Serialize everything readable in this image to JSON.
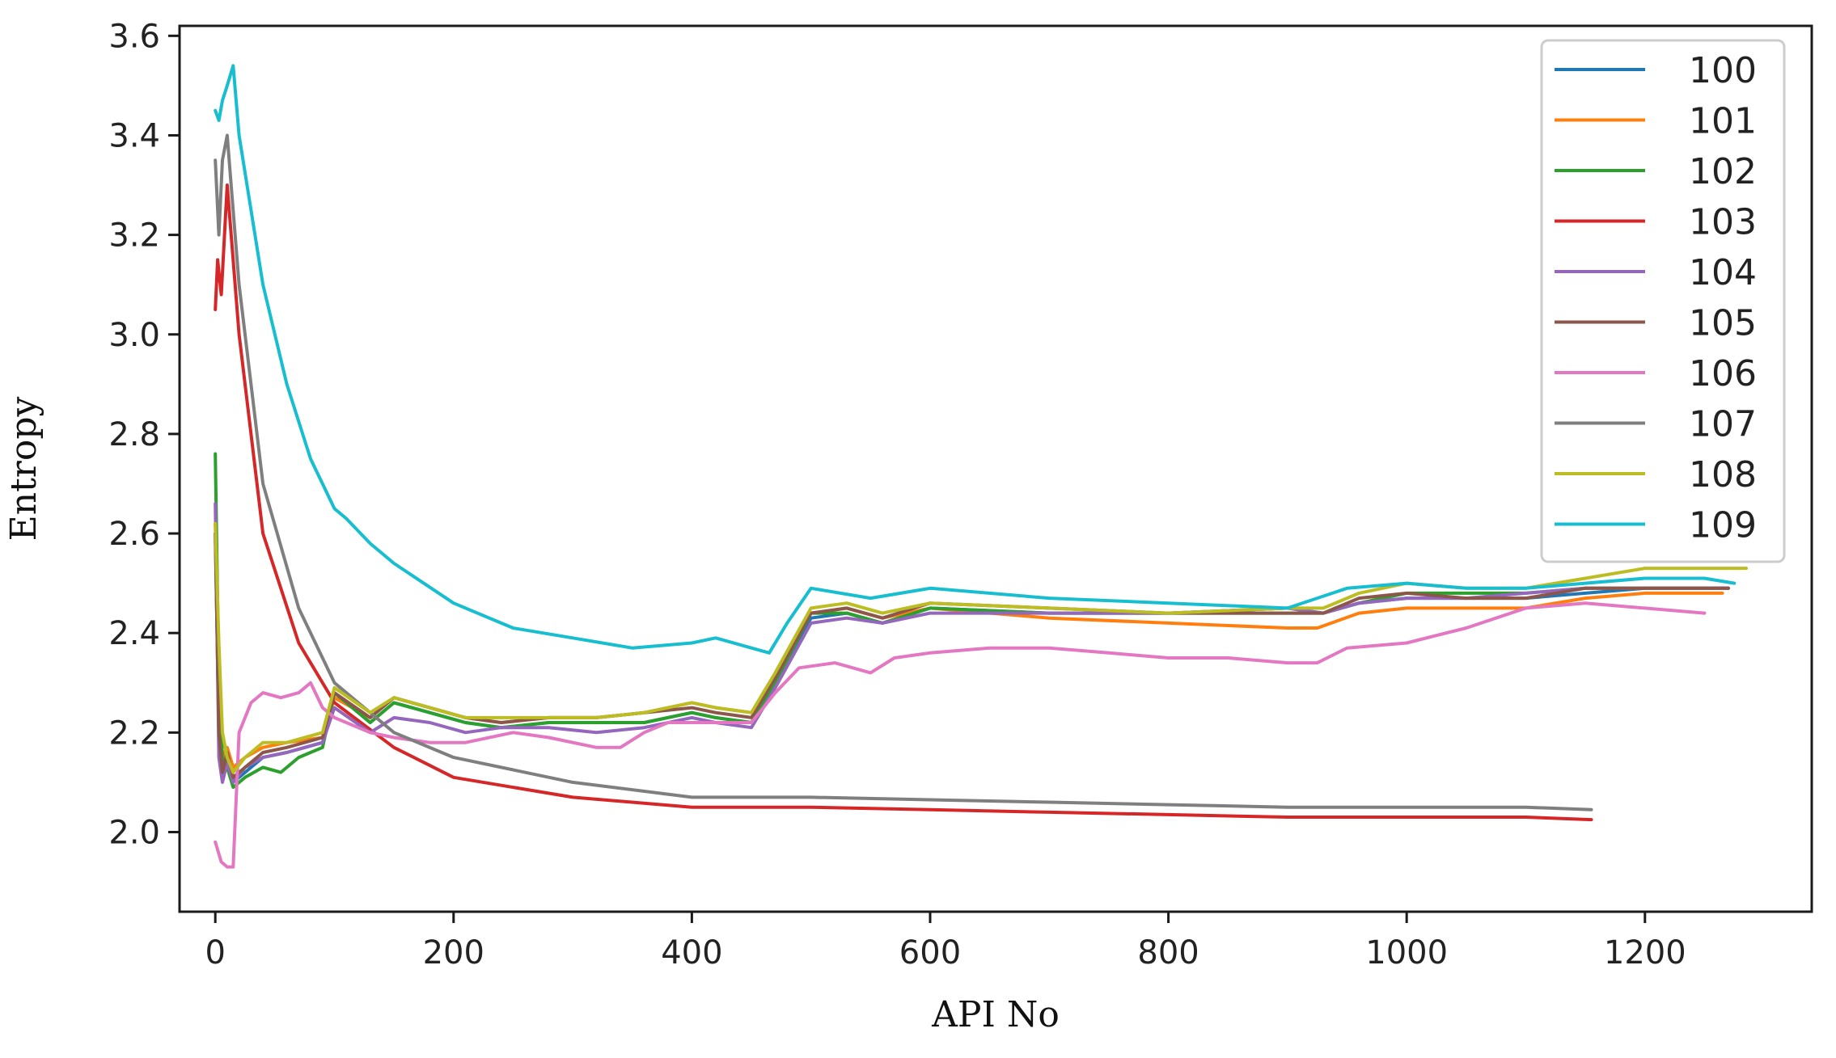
{
  "chart_data": {
    "type": "line",
    "title": "",
    "xlabel": "API No",
    "ylabel": "Entropy",
    "xlim": [
      -30,
      1340
    ],
    "ylim": [
      1.84,
      3.62
    ],
    "xticks": [
      0,
      200,
      400,
      600,
      800,
      1000,
      1200
    ],
    "yticks": [
      2.0,
      2.2,
      2.4,
      2.6,
      2.8,
      3.0,
      3.2,
      3.4,
      3.6
    ],
    "xtick_labels": [
      "0",
      "200",
      "400",
      "600",
      "800",
      "1000",
      "1200"
    ],
    "ytick_labels": [
      "2.0",
      "2.2",
      "2.4",
      "2.6",
      "2.8",
      "3.0",
      "3.2",
      "3.4",
      "3.6"
    ],
    "grid": false,
    "legend_position": "top-right",
    "series": [
      {
        "name": "100",
        "color": "#1f77b4",
        "x": [
          0,
          3,
          6,
          10,
          15,
          25,
          40,
          60,
          90,
          100,
          130,
          150,
          180,
          210,
          240,
          280,
          320,
          360,
          400,
          420,
          450,
          470,
          500,
          530,
          560,
          600,
          700,
          800,
          900,
          930,
          960,
          1000,
          1050,
          1100,
          1150,
          1200,
          1270
        ],
        "y": [
          2.6,
          2.2,
          2.12,
          2.15,
          2.1,
          2.12,
          2.15,
          2.16,
          2.18,
          2.28,
          2.22,
          2.26,
          2.24,
          2.22,
          2.21,
          2.22,
          2.22,
          2.22,
          2.24,
          2.23,
          2.22,
          2.3,
          2.43,
          2.44,
          2.42,
          2.45,
          2.44,
          2.44,
          2.45,
          2.44,
          2.46,
          2.47,
          2.47,
          2.47,
          2.48,
          2.49,
          2.49
        ]
      },
      {
        "name": "101",
        "color": "#ff7f0e",
        "x": [
          0,
          3,
          6,
          10,
          15,
          25,
          40,
          60,
          90,
          100,
          130,
          150,
          180,
          210,
          240,
          280,
          320,
          360,
          400,
          420,
          450,
          470,
          500,
          530,
          560,
          600,
          700,
          800,
          900,
          925,
          960,
          1000,
          1050,
          1100,
          1150,
          1200,
          1265
        ],
        "y": [
          2.62,
          2.25,
          2.15,
          2.17,
          2.13,
          2.15,
          2.17,
          2.18,
          2.19,
          2.27,
          2.23,
          2.27,
          2.25,
          2.23,
          2.22,
          2.23,
          2.23,
          2.24,
          2.26,
          2.25,
          2.24,
          2.31,
          2.44,
          2.45,
          2.43,
          2.45,
          2.43,
          2.42,
          2.41,
          2.41,
          2.44,
          2.45,
          2.45,
          2.45,
          2.47,
          2.48,
          2.48
        ]
      },
      {
        "name": "102",
        "color": "#2ca02c",
        "x": [
          0,
          3,
          6,
          10,
          15,
          25,
          40,
          55,
          70,
          90,
          100,
          130,
          150,
          180,
          210,
          240,
          280,
          320,
          360,
          400,
          420,
          450,
          470,
          500,
          530,
          560,
          600,
          700,
          800,
          900,
          930,
          960,
          1000,
          1050,
          1100,
          1150,
          1200,
          1270
        ],
        "y": [
          2.76,
          2.3,
          2.15,
          2.13,
          2.09,
          2.11,
          2.13,
          2.12,
          2.15,
          2.17,
          2.28,
          2.22,
          2.26,
          2.24,
          2.22,
          2.21,
          2.22,
          2.22,
          2.22,
          2.24,
          2.23,
          2.22,
          2.3,
          2.44,
          2.44,
          2.42,
          2.45,
          2.44,
          2.44,
          2.44,
          2.44,
          2.46,
          2.48,
          2.48,
          2.48,
          2.49,
          2.49,
          2.49
        ]
      },
      {
        "name": "103",
        "color": "#d62728",
        "x": [
          0,
          2,
          5,
          10,
          20,
          40,
          70,
          100,
          150,
          200,
          300,
          400,
          500,
          600,
          700,
          800,
          900,
          1000,
          1100,
          1155
        ],
        "y": [
          3.05,
          3.15,
          3.08,
          3.3,
          3.0,
          2.6,
          2.38,
          2.26,
          2.17,
          2.11,
          2.07,
          2.05,
          2.05,
          2.045,
          2.04,
          2.035,
          2.03,
          2.03,
          2.03,
          2.025
        ]
      },
      {
        "name": "104",
        "color": "#9467bd",
        "x": [
          0,
          3,
          6,
          10,
          15,
          25,
          40,
          60,
          90,
          100,
          130,
          150,
          180,
          210,
          240,
          280,
          320,
          360,
          400,
          420,
          450,
          470,
          500,
          530,
          560,
          600,
          700,
          800,
          900,
          930,
          960,
          1000,
          1050,
          1100,
          1150,
          1200,
          1270
        ],
        "y": [
          2.66,
          2.15,
          2.1,
          2.14,
          2.1,
          2.13,
          2.15,
          2.16,
          2.18,
          2.25,
          2.2,
          2.23,
          2.22,
          2.2,
          2.21,
          2.21,
          2.2,
          2.21,
          2.23,
          2.22,
          2.21,
          2.29,
          2.42,
          2.43,
          2.42,
          2.44,
          2.44,
          2.44,
          2.45,
          2.44,
          2.46,
          2.47,
          2.47,
          2.48,
          2.49,
          2.49,
          2.49
        ]
      },
      {
        "name": "105",
        "color": "#8c564b",
        "x": [
          0,
          3,
          6,
          10,
          15,
          25,
          40,
          60,
          90,
          100,
          130,
          150,
          180,
          210,
          240,
          280,
          320,
          360,
          400,
          420,
          450,
          470,
          500,
          530,
          560,
          600,
          700,
          800,
          900,
          930,
          960,
          1000,
          1050,
          1100,
          1150,
          1200,
          1270
        ],
        "y": [
          2.6,
          2.2,
          2.12,
          2.16,
          2.11,
          2.13,
          2.16,
          2.17,
          2.19,
          2.28,
          2.23,
          2.27,
          2.25,
          2.23,
          2.22,
          2.23,
          2.23,
          2.24,
          2.25,
          2.24,
          2.23,
          2.31,
          2.44,
          2.45,
          2.43,
          2.46,
          2.45,
          2.44,
          2.44,
          2.44,
          2.47,
          2.48,
          2.47,
          2.47,
          2.49,
          2.49,
          2.49
        ]
      },
      {
        "name": "106",
        "color": "#e377c2",
        "x": [
          0,
          5,
          10,
          15,
          20,
          30,
          40,
          55,
          70,
          80,
          90,
          100,
          130,
          150,
          180,
          210,
          250,
          280,
          320,
          340,
          360,
          380,
          420,
          450,
          470,
          490,
          520,
          550,
          570,
          600,
          650,
          700,
          750,
          800,
          850,
          900,
          925,
          950,
          1000,
          1050,
          1100,
          1150,
          1200,
          1250
        ],
        "y": [
          1.98,
          1.94,
          1.93,
          1.93,
          2.2,
          2.26,
          2.28,
          2.27,
          2.28,
          2.3,
          2.25,
          2.23,
          2.2,
          2.19,
          2.18,
          2.18,
          2.2,
          2.19,
          2.17,
          2.17,
          2.2,
          2.22,
          2.22,
          2.22,
          2.28,
          2.33,
          2.34,
          2.32,
          2.35,
          2.36,
          2.37,
          2.37,
          2.36,
          2.35,
          2.35,
          2.34,
          2.34,
          2.37,
          2.38,
          2.41,
          2.45,
          2.46,
          2.45,
          2.44
        ]
      },
      {
        "name": "107",
        "color": "#7f7f7f",
        "x": [
          0,
          3,
          6,
          10,
          20,
          40,
          70,
          100,
          150,
          200,
          300,
          400,
          500,
          600,
          700,
          800,
          900,
          1000,
          1100,
          1155
        ],
        "y": [
          3.35,
          3.2,
          3.35,
          3.4,
          3.1,
          2.7,
          2.45,
          2.3,
          2.2,
          2.15,
          2.1,
          2.07,
          2.07,
          2.065,
          2.06,
          2.055,
          2.05,
          2.05,
          2.05,
          2.045
        ]
      },
      {
        "name": "108",
        "color": "#bcbd22",
        "x": [
          0,
          3,
          6,
          10,
          15,
          25,
          40,
          60,
          90,
          100,
          130,
          150,
          180,
          210,
          240,
          280,
          320,
          360,
          400,
          420,
          450,
          470,
          500,
          530,
          560,
          600,
          700,
          800,
          900,
          930,
          960,
          1000,
          1050,
          1100,
          1150,
          1200,
          1285
        ],
        "y": [
          2.62,
          2.38,
          2.2,
          2.15,
          2.12,
          2.15,
          2.18,
          2.18,
          2.2,
          2.29,
          2.24,
          2.27,
          2.25,
          2.23,
          2.23,
          2.23,
          2.23,
          2.24,
          2.26,
          2.25,
          2.24,
          2.32,
          2.45,
          2.46,
          2.44,
          2.46,
          2.45,
          2.44,
          2.45,
          2.45,
          2.48,
          2.5,
          2.49,
          2.49,
          2.51,
          2.53,
          2.53
        ]
      },
      {
        "name": "109",
        "color": "#17becf",
        "x": [
          0,
          3,
          6,
          10,
          15,
          20,
          40,
          60,
          80,
          100,
          110,
          130,
          150,
          200,
          250,
          300,
          350,
          400,
          420,
          450,
          465,
          480,
          500,
          550,
          600,
          700,
          800,
          900,
          950,
          1000,
          1050,
          1100,
          1150,
          1200,
          1250,
          1275
        ],
        "y": [
          3.45,
          3.43,
          3.47,
          3.5,
          3.54,
          3.4,
          3.1,
          2.9,
          2.75,
          2.65,
          2.63,
          2.58,
          2.54,
          2.46,
          2.41,
          2.39,
          2.37,
          2.38,
          2.39,
          2.37,
          2.36,
          2.42,
          2.49,
          2.47,
          2.49,
          2.47,
          2.46,
          2.45,
          2.49,
          2.5,
          2.49,
          2.49,
          2.5,
          2.51,
          2.51,
          2.5
        ]
      }
    ]
  }
}
